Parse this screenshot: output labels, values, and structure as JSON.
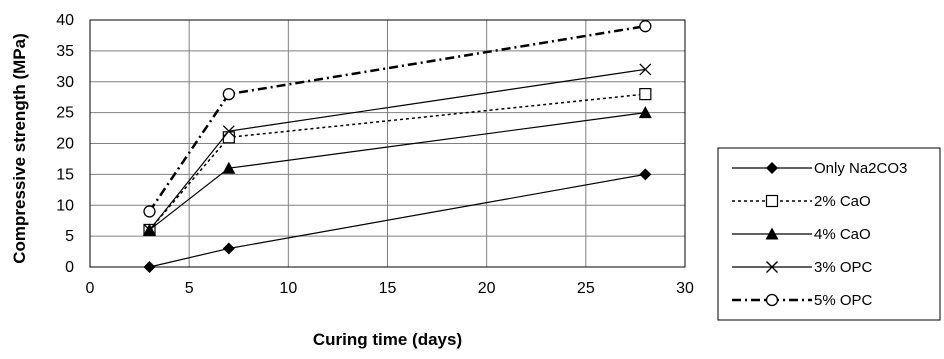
{
  "chart_data": {
    "type": "line",
    "title": "",
    "xlabel": "Curing time (days)",
    "ylabel": "Compressive strength (MPa)",
    "xlim": [
      0,
      30
    ],
    "ylim": [
      0,
      40
    ],
    "xticks": [
      0,
      5,
      10,
      15,
      20,
      25,
      30
    ],
    "yticks": [
      0,
      5,
      10,
      15,
      20,
      25,
      30,
      35,
      40
    ],
    "grid": "horizontal and vertical",
    "legend_position": "right",
    "x": [
      3,
      7,
      28
    ],
    "series": [
      {
        "name": "Only Na2CO3",
        "values": [
          0,
          3,
          15
        ],
        "marker": "diamond",
        "line": "solid"
      },
      {
        "name": "2% CaO",
        "values": [
          6,
          21,
          28
        ],
        "marker": "square",
        "line": "dotted"
      },
      {
        "name": "4% CaO",
        "values": [
          6,
          16,
          25
        ],
        "marker": "triangle",
        "line": "solid"
      },
      {
        "name": "3% OPC",
        "values": [
          6,
          22,
          32
        ],
        "marker": "cross",
        "line": "solid"
      },
      {
        "name": "5% OPC",
        "values": [
          9,
          28,
          39
        ],
        "marker": "circle",
        "line": "dash-dot"
      }
    ]
  }
}
